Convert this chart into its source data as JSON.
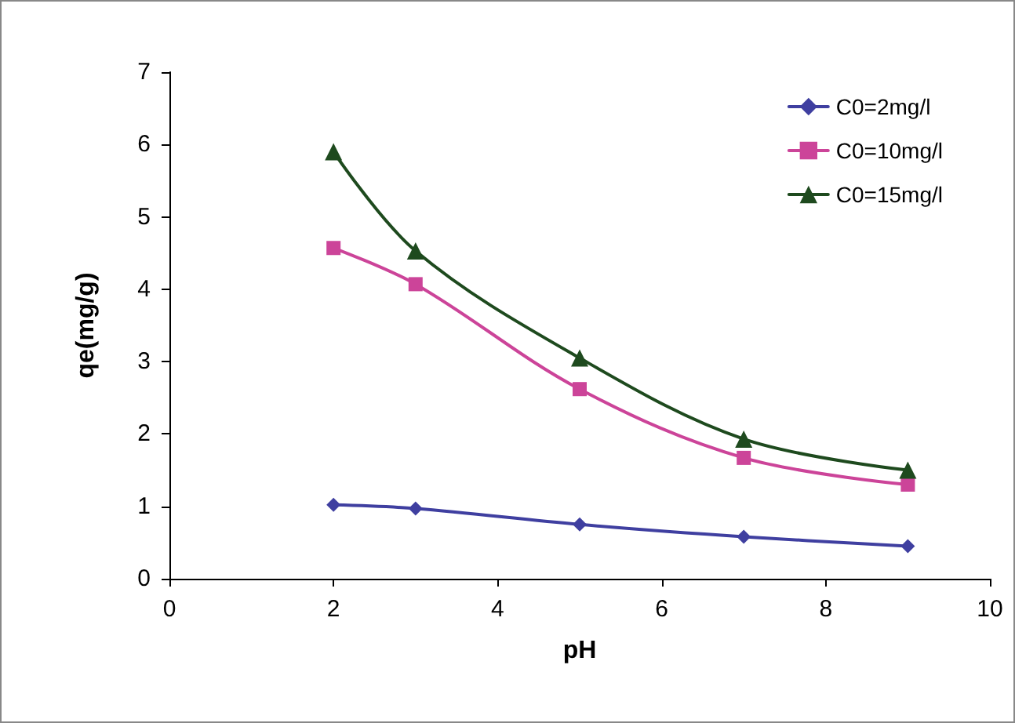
{
  "chart_data": {
    "type": "line",
    "xlabel": "pH",
    "ylabel": "qe(mg/g)",
    "x": [
      2,
      3,
      5,
      7,
      9
    ],
    "series": [
      {
        "name": "C0=2mg/l",
        "color": "#3f3fa0",
        "marker": "diamond",
        "values": [
          1.02,
          0.97,
          0.75,
          0.58,
          0.45
        ]
      },
      {
        "name": "C0=10mg/l",
        "color": "#cc4499",
        "marker": "square",
        "values": [
          4.57,
          4.07,
          2.62,
          1.67,
          1.3
        ]
      },
      {
        "name": "C0=15mg/l",
        "color": "#1e4a1e",
        "marker": "triangle",
        "values": [
          5.9,
          4.53,
          3.05,
          1.93,
          1.5
        ]
      }
    ],
    "xlim": [
      0,
      10
    ],
    "xticks": [
      0,
      2,
      4,
      6,
      8,
      10
    ],
    "ylim": [
      0,
      7
    ],
    "yticks": [
      0,
      1,
      2,
      3,
      4,
      5,
      6,
      7
    ],
    "grid": false,
    "legend": "top right",
    "line_style": "solid"
  }
}
